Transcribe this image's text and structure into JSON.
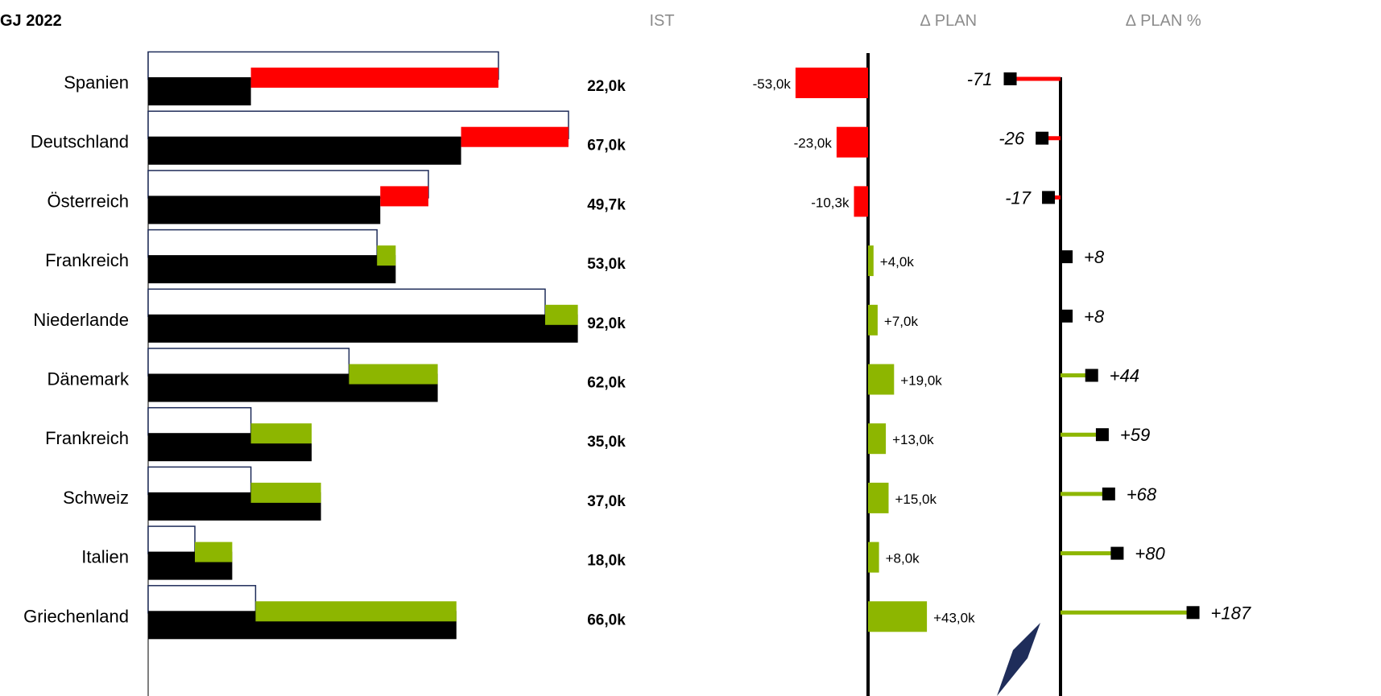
{
  "chart_data": {
    "type": "bar",
    "title": "GJ 2022",
    "columns": {
      "ist": "IST",
      "delta_plan": "∆ PLAN",
      "delta_plan_pct": "∆ PLAN %"
    },
    "categories": [
      "Spanien",
      "Deutschland",
      "Österreich",
      "Frankreich",
      "Niederlande",
      "Dänemark",
      "Frankreich",
      "Schweiz",
      "Italien",
      "Griechenland"
    ],
    "ist_values": [
      22.0,
      67.0,
      49.7,
      53.0,
      92.0,
      62.0,
      35.0,
      37.0,
      18.0,
      66.0
    ],
    "ist_labels": [
      "22,0k",
      "67,0k",
      "49,7k",
      "53,0k",
      "92,0k",
      "62,0k",
      "35,0k",
      "37,0k",
      "18,0k",
      "66,0k"
    ],
    "plan_values": [
      75.0,
      90.0,
      60.0,
      49.0,
      85.0,
      43.0,
      22.0,
      22.0,
      10.0,
      23.0
    ],
    "delta_plan_values": [
      -53.0,
      -23.0,
      -10.3,
      4.0,
      7.0,
      19.0,
      13.0,
      15.0,
      8.0,
      43.0
    ],
    "delta_plan_labels": [
      "-53,0k",
      "-23,0k",
      "-10,3k",
      "+4,0k",
      "+7,0k",
      "+19,0k",
      "+13,0k",
      "+15,0k",
      "+8,0k",
      "+43,0k"
    ],
    "delta_plan_pct_values": [
      -71,
      -26,
      -17,
      8,
      8,
      44,
      59,
      68,
      80,
      187
    ],
    "delta_plan_pct_labels": [
      "-71",
      "-26",
      "-17",
      "+8",
      "+8",
      "+44",
      "+59",
      "+68",
      "+80",
      "+187"
    ],
    "colors": {
      "actual": "#000000",
      "plan_outline": "#1f2d5a",
      "negative": "#ff0000",
      "positive": "#8db600",
      "header": "#8c8c8c",
      "axis": "#000000",
      "callout": "#1f2d5a"
    }
  }
}
